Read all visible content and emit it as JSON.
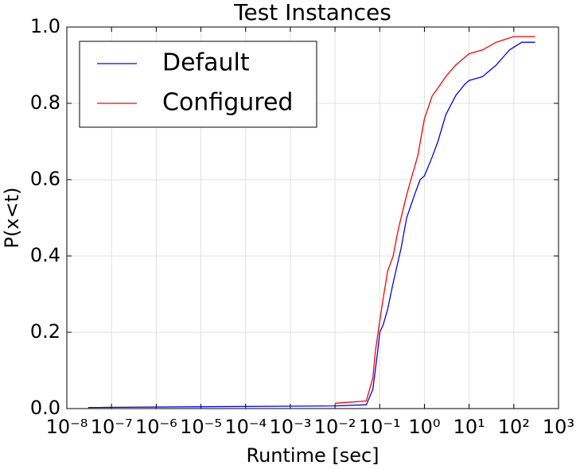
{
  "chart_data": {
    "type": "line",
    "title": "Test Instances",
    "x_label": "Runtime [sec]",
    "y_label": "P(x<t)",
    "x_scale": "log",
    "grid": true,
    "legend": "upper left",
    "xlim": [
      1e-08,
      1000
    ],
    "xticks": [
      {
        "value": 1e-08,
        "label": "10⁻⁸"
      },
      {
        "value": 1e-07,
        "label": "10⁻⁷"
      },
      {
        "value": 1e-06,
        "label": "10⁻⁶"
      },
      {
        "value": 1e-05,
        "label": "10⁻⁵"
      },
      {
        "value": 0.0001,
        "label": "10⁻⁴"
      },
      {
        "value": 0.001,
        "label": "10⁻³"
      },
      {
        "value": 0.01,
        "label": "10⁻²"
      },
      {
        "value": 0.1,
        "label": "10⁻¹"
      },
      {
        "value": 1,
        "label": "10⁰"
      },
      {
        "value": 10,
        "label": "10¹"
      },
      {
        "value": 100,
        "label": "10²"
      },
      {
        "value": 1000,
        "label": "10³"
      }
    ],
    "ylim": [
      0,
      1
    ],
    "yticks": [
      {
        "value": 0,
        "label": "0.0"
      },
      0.2,
      0.4,
      0.6,
      0.8,
      {
        "value": 1,
        "label": "1.0"
      }
    ],
    "series": [
      {
        "name": "Default",
        "color": "#0000ff",
        "x": [
          3e-08,
          0.01,
          0.05,
          0.07,
          0.09,
          0.1,
          0.12,
          0.15,
          0.2,
          0.3,
          0.4,
          0.6,
          0.8,
          1,
          1.5,
          2,
          3,
          5,
          8,
          10,
          20,
          40,
          80,
          150,
          300
        ],
        "values": [
          0.003,
          0.007,
          0.01,
          0.05,
          0.15,
          0.2,
          0.22,
          0.26,
          0.33,
          0.42,
          0.5,
          0.56,
          0.6,
          0.61,
          0.66,
          0.7,
          0.77,
          0.82,
          0.85,
          0.86,
          0.87,
          0.9,
          0.94,
          0.96,
          0.96
        ]
      },
      {
        "name": "Configured",
        "color": "#ff0000",
        "x": [
          0.01,
          0.05,
          0.07,
          0.08,
          0.1,
          0.12,
          0.15,
          0.2,
          0.25,
          0.3,
          0.4,
          0.5,
          0.7,
          1,
          1.5,
          2,
          3,
          5,
          10,
          20,
          40,
          100,
          300
        ],
        "values": [
          0.014,
          0.02,
          0.08,
          0.15,
          0.23,
          0.29,
          0.36,
          0.4,
          0.46,
          0.5,
          0.56,
          0.6,
          0.66,
          0.76,
          0.82,
          0.84,
          0.87,
          0.9,
          0.93,
          0.94,
          0.96,
          0.975,
          0.975
        ]
      }
    ]
  }
}
